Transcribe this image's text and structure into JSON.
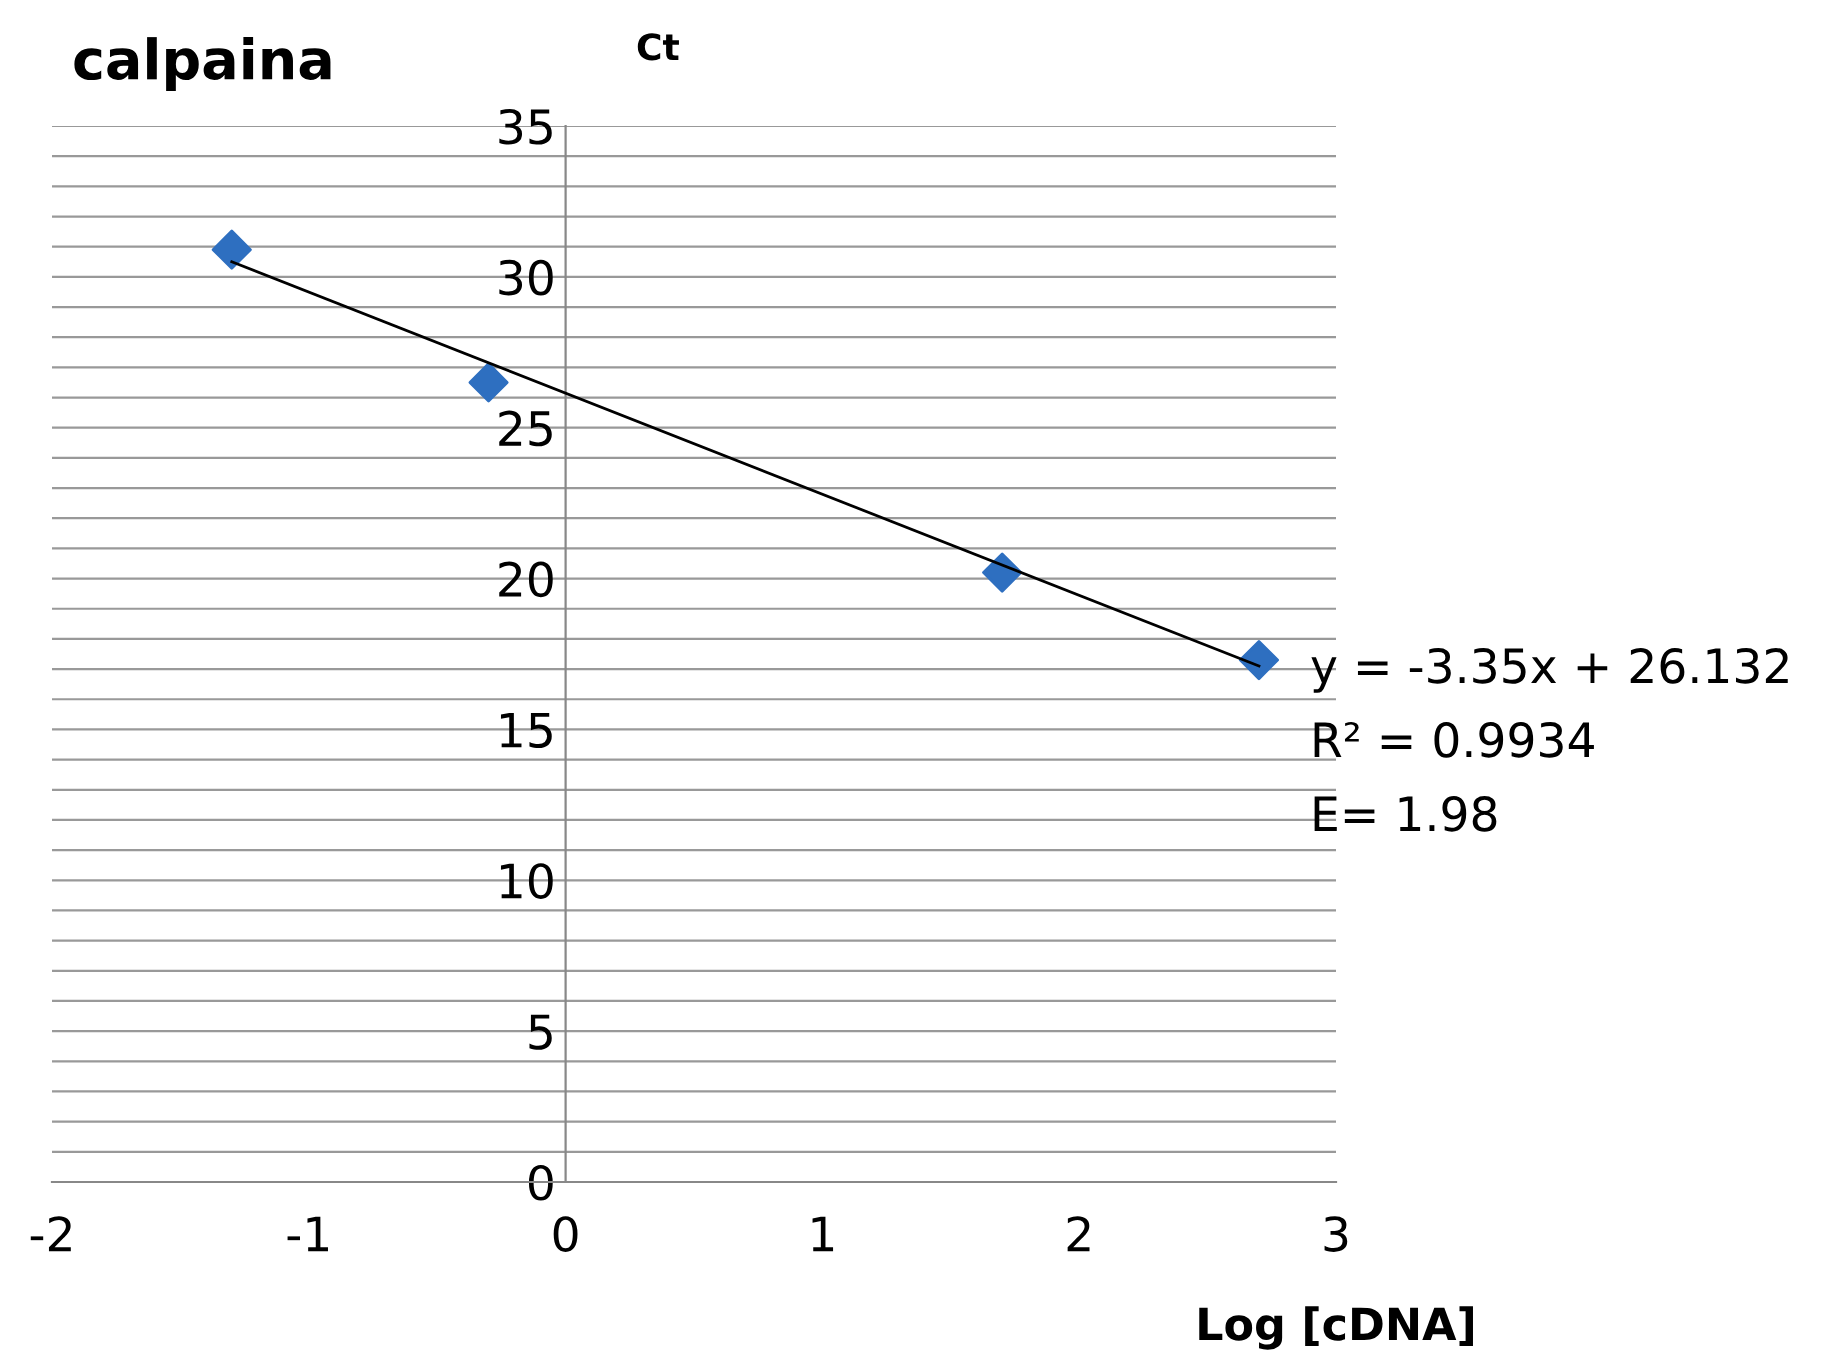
{
  "chart_data": {
    "type": "scatter",
    "title": "calpaina",
    "ylabel": "Ct",
    "xlabel": "Log [cDNA]",
    "series": [
      {
        "color": "#2e6fc0",
        "marker": "diamond",
        "x": [
          -1.3,
          -0.3,
          1.7,
          2.7
        ],
        "values": [
          30.9,
          26.5,
          20.2,
          17.3
        ]
      },
      {
        "type": "line",
        "color": "#000000",
        "marker": "none",
        "line_style": "solid",
        "x": [
          -1.3,
          2.7
        ],
        "values": [
          30.5,
          17.1
        ]
      }
    ],
    "xlim": [
      -2,
      3
    ],
    "xticks": [
      -2,
      -1,
      0,
      1,
      2,
      3
    ],
    "ylim": [
      0,
      35
    ],
    "yticks": [
      0,
      {
        "value": 1,
        "label": null
      },
      {
        "value": 2,
        "label": null
      },
      {
        "value": 3,
        "label": null
      },
      {
        "value": 4,
        "label": null
      },
      5,
      {
        "value": 6,
        "label": null
      },
      {
        "value": 7,
        "label": null
      },
      {
        "value": 8,
        "label": null
      },
      {
        "value": 9,
        "label": null
      },
      10,
      {
        "value": 11,
        "label": null
      },
      {
        "value": 12,
        "label": null
      },
      {
        "value": 13,
        "label": null
      },
      {
        "value": 14,
        "label": null
      },
      15,
      {
        "value": 16,
        "label": null
      },
      {
        "value": 17,
        "label": null
      },
      {
        "value": 18,
        "label": null
      },
      {
        "value": 19,
        "label": null
      },
      20,
      {
        "value": 21,
        "label": null
      },
      {
        "value": 22,
        "label": null
      },
      {
        "value": 23,
        "label": null
      },
      {
        "value": 24,
        "label": null
      },
      25,
      {
        "value": 26,
        "label": null
      },
      {
        "value": 27,
        "label": null
      },
      {
        "value": 28,
        "label": null
      },
      {
        "value": 29,
        "label": null
      },
      30,
      {
        "value": 31,
        "label": null
      },
      {
        "value": 32,
        "label": null
      },
      {
        "value": 33,
        "label": null
      },
      {
        "value": 34,
        "label": null
      },
      35
    ],
    "grid": "y",
    "annotations": [
      "y = -3.35x + 26.132",
      "R² = 0.9934",
      "E= 1.98"
    ]
  }
}
